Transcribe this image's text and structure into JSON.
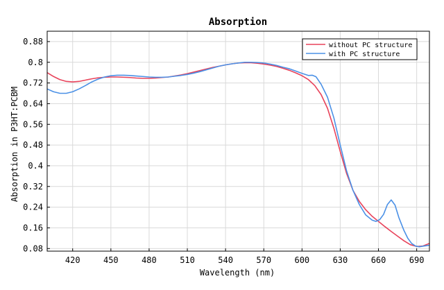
{
  "chart_data": {
    "type": "line",
    "title": "Absorption",
    "xlabel": "Wavelength (nm)",
    "ylabel": "Absorption in P3HT:PCBM",
    "xlim": [
      400,
      700
    ],
    "ylim": [
      0.07,
      0.92
    ],
    "xticks": [
      420,
      450,
      480,
      510,
      540,
      570,
      600,
      630,
      660,
      690
    ],
    "yticks": [
      0.08,
      0.16,
      0.24,
      0.32,
      0.4,
      0.48,
      0.56,
      0.64,
      0.72,
      0.8,
      0.88
    ],
    "grid": true,
    "legend_position": "top-right",
    "series": [
      {
        "name": "without PC structure",
        "color": "#e8425a",
        "points": [
          [
            400,
            0.76
          ],
          [
            405,
            0.745
          ],
          [
            410,
            0.733
          ],
          [
            415,
            0.726
          ],
          [
            420,
            0.724
          ],
          [
            425,
            0.726
          ],
          [
            430,
            0.731
          ],
          [
            435,
            0.736
          ],
          [
            440,
            0.74
          ],
          [
            445,
            0.742
          ],
          [
            450,
            0.743
          ],
          [
            455,
            0.743
          ],
          [
            460,
            0.742
          ],
          [
            465,
            0.741
          ],
          [
            470,
            0.739
          ],
          [
            475,
            0.738
          ],
          [
            480,
            0.738
          ],
          [
            485,
            0.739
          ],
          [
            490,
            0.741
          ],
          [
            495,
            0.743
          ],
          [
            500,
            0.747
          ],
          [
            505,
            0.751
          ],
          [
            510,
            0.756
          ],
          [
            515,
            0.762
          ],
          [
            520,
            0.768
          ],
          [
            525,
            0.774
          ],
          [
            530,
            0.78
          ],
          [
            535,
            0.785
          ],
          [
            540,
            0.79
          ],
          [
            545,
            0.794
          ],
          [
            550,
            0.797
          ],
          [
            555,
            0.798
          ],
          [
            560,
            0.798
          ],
          [
            565,
            0.796
          ],
          [
            570,
            0.793
          ],
          [
            575,
            0.789
          ],
          [
            580,
            0.784
          ],
          [
            585,
            0.777
          ],
          [
            590,
            0.769
          ],
          [
            595,
            0.759
          ],
          [
            600,
            0.748
          ],
          [
            605,
            0.733
          ],
          [
            610,
            0.71
          ],
          [
            615,
            0.675
          ],
          [
            620,
            0.622
          ],
          [
            625,
            0.545
          ],
          [
            630,
            0.455
          ],
          [
            635,
            0.37
          ],
          [
            640,
            0.305
          ],
          [
            645,
            0.262
          ],
          [
            650,
            0.23
          ],
          [
            655,
            0.205
          ],
          [
            660,
            0.185
          ],
          [
            665,
            0.165
          ],
          [
            670,
            0.146
          ],
          [
            675,
            0.128
          ],
          [
            680,
            0.11
          ],
          [
            685,
            0.095
          ],
          [
            690,
            0.088
          ],
          [
            695,
            0.09
          ],
          [
            700,
            0.1
          ]
        ]
      },
      {
        "name": "with PC structure",
        "color": "#4a90e6",
        "points": [
          [
            400,
            0.697
          ],
          [
            405,
            0.686
          ],
          [
            410,
            0.68
          ],
          [
            415,
            0.68
          ],
          [
            420,
            0.686
          ],
          [
            425,
            0.697
          ],
          [
            430,
            0.71
          ],
          [
            435,
            0.724
          ],
          [
            440,
            0.735
          ],
          [
            445,
            0.743
          ],
          [
            450,
            0.748
          ],
          [
            455,
            0.75
          ],
          [
            460,
            0.75
          ],
          [
            465,
            0.749
          ],
          [
            470,
            0.747
          ],
          [
            475,
            0.745
          ],
          [
            480,
            0.743
          ],
          [
            485,
            0.742
          ],
          [
            490,
            0.742
          ],
          [
            495,
            0.743
          ],
          [
            500,
            0.746
          ],
          [
            505,
            0.749
          ],
          [
            510,
            0.753
          ],
          [
            515,
            0.758
          ],
          [
            520,
            0.764
          ],
          [
            525,
            0.771
          ],
          [
            530,
            0.778
          ],
          [
            535,
            0.785
          ],
          [
            540,
            0.79
          ],
          [
            545,
            0.794
          ],
          [
            550,
            0.797
          ],
          [
            555,
            0.8
          ],
          [
            560,
            0.8
          ],
          [
            565,
            0.799
          ],
          [
            570,
            0.797
          ],
          [
            575,
            0.793
          ],
          [
            580,
            0.788
          ],
          [
            585,
            0.781
          ],
          [
            590,
            0.775
          ],
          [
            595,
            0.766
          ],
          [
            600,
            0.757
          ],
          [
            605,
            0.749
          ],
          [
            608,
            0.75
          ],
          [
            611,
            0.744
          ],
          [
            615,
            0.715
          ],
          [
            620,
            0.665
          ],
          [
            625,
            0.585
          ],
          [
            630,
            0.48
          ],
          [
            635,
            0.38
          ],
          [
            640,
            0.305
          ],
          [
            645,
            0.25
          ],
          [
            650,
            0.21
          ],
          [
            655,
            0.19
          ],
          [
            658,
            0.185
          ],
          [
            661,
            0.192
          ],
          [
            664,
            0.212
          ],
          [
            667,
            0.25
          ],
          [
            670,
            0.268
          ],
          [
            673,
            0.248
          ],
          [
            676,
            0.2
          ],
          [
            680,
            0.15
          ],
          [
            683,
            0.12
          ],
          [
            686,
            0.1
          ],
          [
            689,
            0.09
          ],
          [
            692,
            0.087
          ],
          [
            696,
            0.09
          ],
          [
            700,
            0.093
          ]
        ]
      }
    ]
  }
}
